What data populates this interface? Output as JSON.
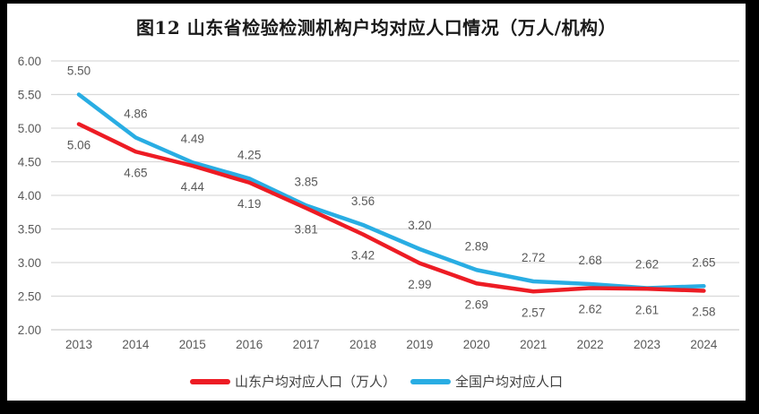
{
  "palette": {
    "frame_black": "#000000",
    "page_white": "#ffffff",
    "grid": "#d9d9d9",
    "baseline": "#cccccc",
    "tick_label": "#595959",
    "data_label": "#595959",
    "title_text": "#1a1a1a",
    "legend_text": "#404040",
    "shandong_red": "#ed1c24",
    "national_blue": "#29ade3"
  },
  "chart_data": {
    "type": "line",
    "title": "图12 山东省检验检测机构户均对应人口情况（万人/机构）",
    "x": [
      "2013",
      "2014",
      "2015",
      "2016",
      "2017",
      "2018",
      "2019",
      "2020",
      "2021",
      "2022",
      "2023",
      "2024"
    ],
    "series": [
      {
        "name": "山东户均对应人口（万人）",
        "color": "#ed1c24",
        "label_position": "below",
        "values": [
          5.06,
          4.65,
          4.44,
          4.19,
          3.81,
          3.42,
          2.99,
          2.69,
          2.57,
          2.62,
          2.61,
          2.58
        ]
      },
      {
        "name": "全国户均对应人口",
        "color": "#29ade3",
        "label_position": "above",
        "values": [
          5.5,
          4.86,
          4.49,
          4.25,
          3.85,
          3.56,
          3.2,
          2.89,
          2.72,
          2.68,
          2.62,
          2.65
        ]
      }
    ],
    "xlabel": "",
    "ylabel": "",
    "ylim": [
      2.0,
      6.0
    ],
    "ytick_step": 0.5,
    "yticks": [
      "6.00",
      "5.50",
      "5.00",
      "4.50",
      "4.00",
      "3.50",
      "3.00",
      "2.50",
      "2.00"
    ],
    "grid": "horizontal",
    "legend_position": "bottom",
    "data_labels": true,
    "value_format_decimals": 2
  }
}
